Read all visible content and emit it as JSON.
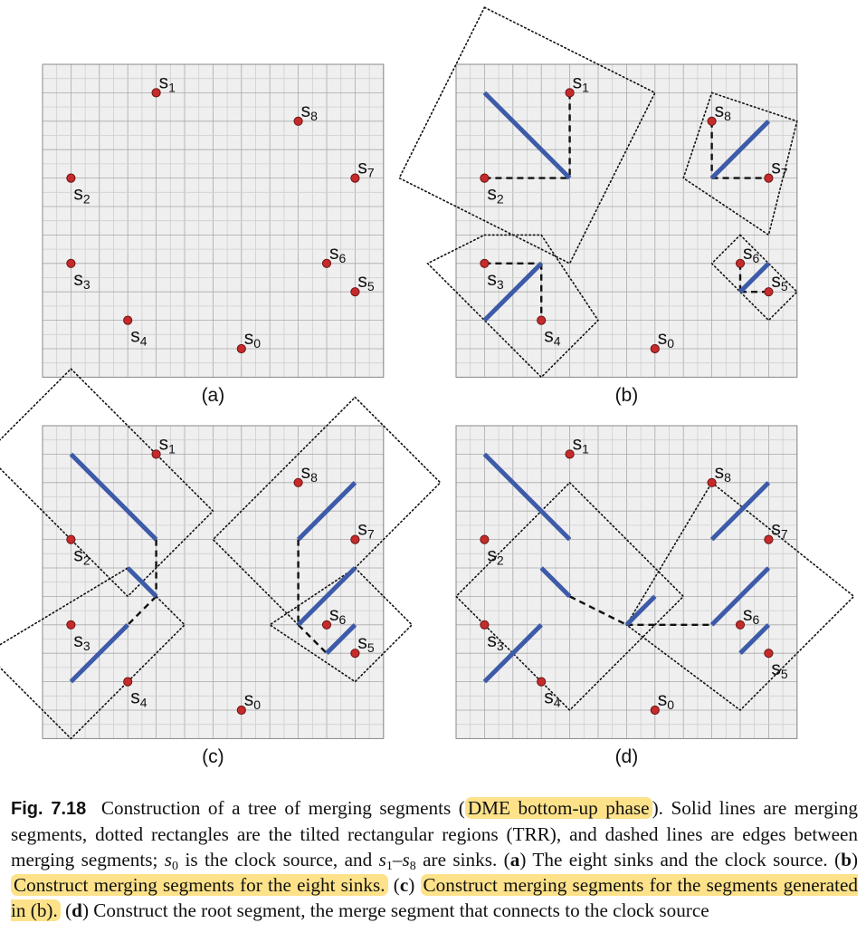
{
  "figure": {
    "panels": [
      {
        "label": "(a)",
        "sinks": [
          {
            "name": "s",
            "sub": "0",
            "label_pos": "ne",
            "x": 7,
            "y": 10
          },
          {
            "name": "s",
            "sub": "1",
            "label_pos": "ne",
            "x": 4,
            "y": 1
          },
          {
            "name": "s",
            "sub": "2",
            "label_pos": "se",
            "x": 1,
            "y": 4
          },
          {
            "name": "s",
            "sub": "3",
            "label_pos": "se",
            "x": 1,
            "y": 7
          },
          {
            "name": "s",
            "sub": "4",
            "label_pos": "se",
            "x": 3,
            "y": 9
          },
          {
            "name": "s",
            "sub": "5",
            "label_pos": "ne",
            "x": 11,
            "y": 8
          },
          {
            "name": "s",
            "sub": "6",
            "label_pos": "ne",
            "x": 10,
            "y": 7
          },
          {
            "name": "s",
            "sub": "7",
            "label_pos": "ne",
            "x": 11,
            "y": 4
          },
          {
            "name": "s",
            "sub": "8",
            "label_pos": "ne",
            "x": 9,
            "y": 2
          }
        ],
        "merging_segments": [],
        "edges": [],
        "trrs": []
      },
      {
        "label": "(b)",
        "sinks": [
          {
            "name": "s",
            "sub": "0",
            "label_pos": "ne",
            "x": 7,
            "y": 10
          },
          {
            "name": "s",
            "sub": "1",
            "label_pos": "ne",
            "x": 4,
            "y": 1
          },
          {
            "name": "s",
            "sub": "2",
            "label_pos": "se",
            "x": 1,
            "y": 4
          },
          {
            "name": "s",
            "sub": "3",
            "label_pos": "se",
            "x": 1,
            "y": 7
          },
          {
            "name": "s",
            "sub": "4",
            "label_pos": "se",
            "x": 3,
            "y": 9
          },
          {
            "name": "s",
            "sub": "5",
            "label_pos": "ne",
            "x": 11,
            "y": 8
          },
          {
            "name": "s",
            "sub": "6",
            "label_pos": "ne",
            "x": 10,
            "y": 7
          },
          {
            "name": "s",
            "sub": "7",
            "label_pos": "ne",
            "x": 11,
            "y": 4
          },
          {
            "name": "s",
            "sub": "8",
            "label_pos": "ne",
            "x": 9,
            "y": 2
          }
        ],
        "merging_segments": [
          [
            [
              1,
              1
            ],
            [
              4,
              4
            ]
          ],
          [
            [
              9,
              4
            ],
            [
              11,
              2
            ]
          ],
          [
            [
              1,
              9
            ],
            [
              3,
              7
            ]
          ],
          [
            [
              10,
              8
            ],
            [
              11,
              7
            ]
          ]
        ],
        "edges": [
          [
            [
              4,
              1
            ],
            [
              4,
              4
            ]
          ],
          [
            [
              1,
              4
            ],
            [
              4,
              4
            ]
          ],
          [
            [
              9,
              2
            ],
            [
              9,
              4
            ]
          ],
          [
            [
              9,
              4
            ],
            [
              11,
              4
            ]
          ],
          [
            [
              1,
              7
            ],
            [
              3,
              7
            ]
          ],
          [
            [
              3,
              7
            ],
            [
              3,
              9
            ]
          ],
          [
            [
              10,
              7
            ],
            [
              10,
              8
            ]
          ],
          [
            [
              10,
              8
            ],
            [
              11,
              8
            ]
          ]
        ],
        "trrs": [
          [
            [
              1,
              -2
            ],
            [
              7,
              1
            ],
            [
              4,
              7
            ],
            [
              -2,
              4
            ]
          ],
          [
            [
              9,
              1
            ],
            [
              12,
              2
            ],
            [
              11,
              6
            ],
            [
              8,
              4
            ]
          ],
          [
            [
              1,
              6
            ],
            [
              3,
              6
            ],
            [
              5,
              9
            ],
            [
              3,
              11
            ],
            [
              -1,
              7
            ]
          ],
          [
            [
              10,
              6
            ],
            [
              12,
              8
            ],
            [
              11,
              9
            ],
            [
              9,
              7
            ]
          ]
        ]
      },
      {
        "label": "(c)",
        "sinks": [
          {
            "name": "s",
            "sub": "0",
            "label_pos": "ne",
            "x": 7,
            "y": 10
          },
          {
            "name": "s",
            "sub": "1",
            "label_pos": "ne",
            "x": 4,
            "y": 1
          },
          {
            "name": "s",
            "sub": "2",
            "label_pos": "se",
            "x": 1,
            "y": 4
          },
          {
            "name": "s",
            "sub": "3",
            "label_pos": "se",
            "x": 1,
            "y": 7
          },
          {
            "name": "s",
            "sub": "4",
            "label_pos": "se",
            "x": 3,
            "y": 9
          },
          {
            "name": "s",
            "sub": "5",
            "label_pos": "ne",
            "x": 11,
            "y": 8
          },
          {
            "name": "s",
            "sub": "6",
            "label_pos": "ne",
            "x": 10,
            "y": 7
          },
          {
            "name": "s",
            "sub": "7",
            "label_pos": "ne",
            "x": 11,
            "y": 4
          },
          {
            "name": "s",
            "sub": "8",
            "label_pos": "ne",
            "x": 9,
            "y": 2
          }
        ],
        "merging_segments": [
          [
            [
              1,
              1
            ],
            [
              4,
              4
            ]
          ],
          [
            [
              1,
              9
            ],
            [
              3,
              7
            ]
          ],
          [
            [
              3,
              5
            ],
            [
              4,
              6
            ]
          ],
          [
            [
              9,
              4
            ],
            [
              11,
              2
            ]
          ],
          [
            [
              9,
              7
            ],
            [
              11,
              5
            ]
          ],
          [
            [
              10,
              8
            ],
            [
              11,
              7
            ]
          ]
        ],
        "edges": [
          [
            [
              4,
              4
            ],
            [
              4,
              6
            ]
          ],
          [
            [
              4,
              6
            ],
            [
              3,
              7
            ]
          ],
          [
            [
              9,
              4
            ],
            [
              9,
              7
            ]
          ],
          [
            [
              9,
              7
            ],
            [
              10,
              8
            ]
          ]
        ],
        "trrs": [
          [
            [
              1,
              -2
            ],
            [
              6,
              3
            ],
            [
              3,
              6
            ],
            [
              -2,
              1
            ]
          ],
          [
            [
              3,
              5
            ],
            [
              5,
              7
            ],
            [
              1,
              11
            ],
            [
              -2,
              8
            ]
          ],
          [
            [
              11,
              -1
            ],
            [
              14,
              2
            ],
            [
              9,
              7
            ],
            [
              6,
              4
            ]
          ],
          [
            [
              11,
              5
            ],
            [
              13,
              7
            ],
            [
              11,
              9
            ],
            [
              8,
              7
            ]
          ]
        ]
      },
      {
        "label": "(d)",
        "sinks": [
          {
            "name": "s",
            "sub": "0",
            "label_pos": "ne",
            "x": 7,
            "y": 10
          },
          {
            "name": "s",
            "sub": "1",
            "label_pos": "ne",
            "x": 4,
            "y": 1
          },
          {
            "name": "s",
            "sub": "2",
            "label_pos": "se",
            "x": 1,
            "y": 4
          },
          {
            "name": "s",
            "sub": "3",
            "label_pos": "se",
            "x": 1,
            "y": 7
          },
          {
            "name": "s",
            "sub": "4",
            "label_pos": "se",
            "x": 3,
            "y": 9
          },
          {
            "name": "s",
            "sub": "5",
            "label_pos": "se",
            "x": 11,
            "y": 8
          },
          {
            "name": "s",
            "sub": "6",
            "label_pos": "ne",
            "x": 10,
            "y": 7
          },
          {
            "name": "s",
            "sub": "7",
            "label_pos": "ne",
            "x": 11,
            "y": 4
          },
          {
            "name": "s",
            "sub": "8",
            "label_pos": "ne",
            "x": 9,
            "y": 2
          }
        ],
        "merging_segments": [
          [
            [
              1,
              1
            ],
            [
              4,
              4
            ]
          ],
          [
            [
              1,
              9
            ],
            [
              3,
              7
            ]
          ],
          [
            [
              3,
              5
            ],
            [
              4,
              6
            ]
          ],
          [
            [
              6,
              7
            ],
            [
              7,
              6
            ]
          ],
          [
            [
              9,
              4
            ],
            [
              11,
              2
            ]
          ],
          [
            [
              9,
              7
            ],
            [
              11,
              5
            ]
          ],
          [
            [
              10,
              8
            ],
            [
              11,
              7
            ]
          ]
        ],
        "edges": [
          [
            [
              4,
              6
            ],
            [
              6,
              7
            ]
          ],
          [
            [
              6,
              7
            ],
            [
              9,
              7
            ]
          ]
        ],
        "trrs": [
          [
            [
              4,
              2
            ],
            [
              8,
              6
            ],
            [
              4,
              10
            ],
            [
              0,
              6
            ]
          ],
          [
            [
              9,
              2
            ],
            [
              14,
              6
            ],
            [
              10,
              10
            ],
            [
              6,
              7
            ]
          ]
        ]
      }
    ]
  },
  "caption": {
    "fig_num": "Fig. 7.18",
    "p1": "Construction of a tree of merging segments (",
    "h1": "DME bottom-up phase",
    "p2": "). Solid lines are merging segments, dotted rectangles are the tilted rectangular regions (TRR), and dashed lines are edges between merging segments;",
    "s0_var": "s",
    "s0_sub": "0",
    "p3": "is the clock source, and",
    "s1_var": "s",
    "s1_sub": "1",
    "dash": "–",
    "s8_var": "s",
    "s8_sub": "8",
    "p4": "are sinks. (",
    "a_label": "a",
    "p5": ") The eight sinks and the clock source. (",
    "b_label": "b",
    "p6": ")",
    "h2": "Construct merging segments for the eight sinks.",
    "p7": "(",
    "c_label": "c",
    "p8": ")",
    "h3": "Construct merging segments for the segments generated in (b).",
    "p9": "(",
    "d_label": "d",
    "p10": ") Construct the root segment, the merge segment that connects to the clock source"
  }
}
